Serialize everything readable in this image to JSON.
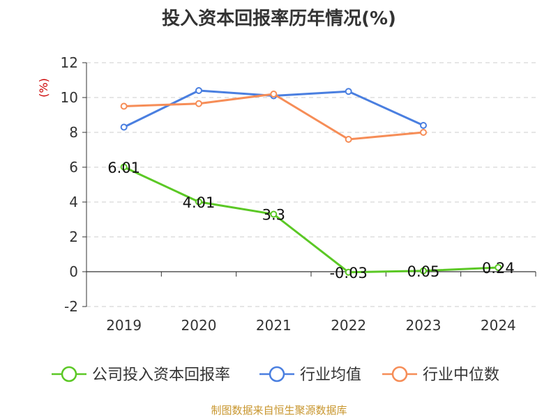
{
  "chart_data": {
    "type": "line",
    "title": "投入资本回报率历年情况(%)",
    "ylabel": "(%)",
    "categories": [
      "2019",
      "2020",
      "2021",
      "2022",
      "2023",
      "2024"
    ],
    "ylim": [
      -2,
      12
    ],
    "yticks": [
      -2,
      0,
      2,
      4,
      6,
      8,
      10,
      12
    ],
    "grid": true,
    "legend_position": "bottom",
    "series": [
      {
        "name": "公司投入资本回报率",
        "color": "#5bc825",
        "values": [
          6.01,
          4.01,
          3.3,
          -0.03,
          0.05,
          0.24
        ],
        "data_labels": [
          "6.01",
          "4.01",
          "3.3",
          "-0.03",
          "0.05",
          "0.24"
        ]
      },
      {
        "name": "行业均值",
        "color": "#4a7fe0",
        "values": [
          8.3,
          10.4,
          10.1,
          10.35,
          8.4,
          null
        ]
      },
      {
        "name": "行业中位数",
        "color": "#f68d57",
        "values": [
          9.5,
          9.65,
          10.2,
          7.6,
          8.0,
          null
        ]
      }
    ]
  },
  "source": "制图数据来自恒生聚源数据库"
}
